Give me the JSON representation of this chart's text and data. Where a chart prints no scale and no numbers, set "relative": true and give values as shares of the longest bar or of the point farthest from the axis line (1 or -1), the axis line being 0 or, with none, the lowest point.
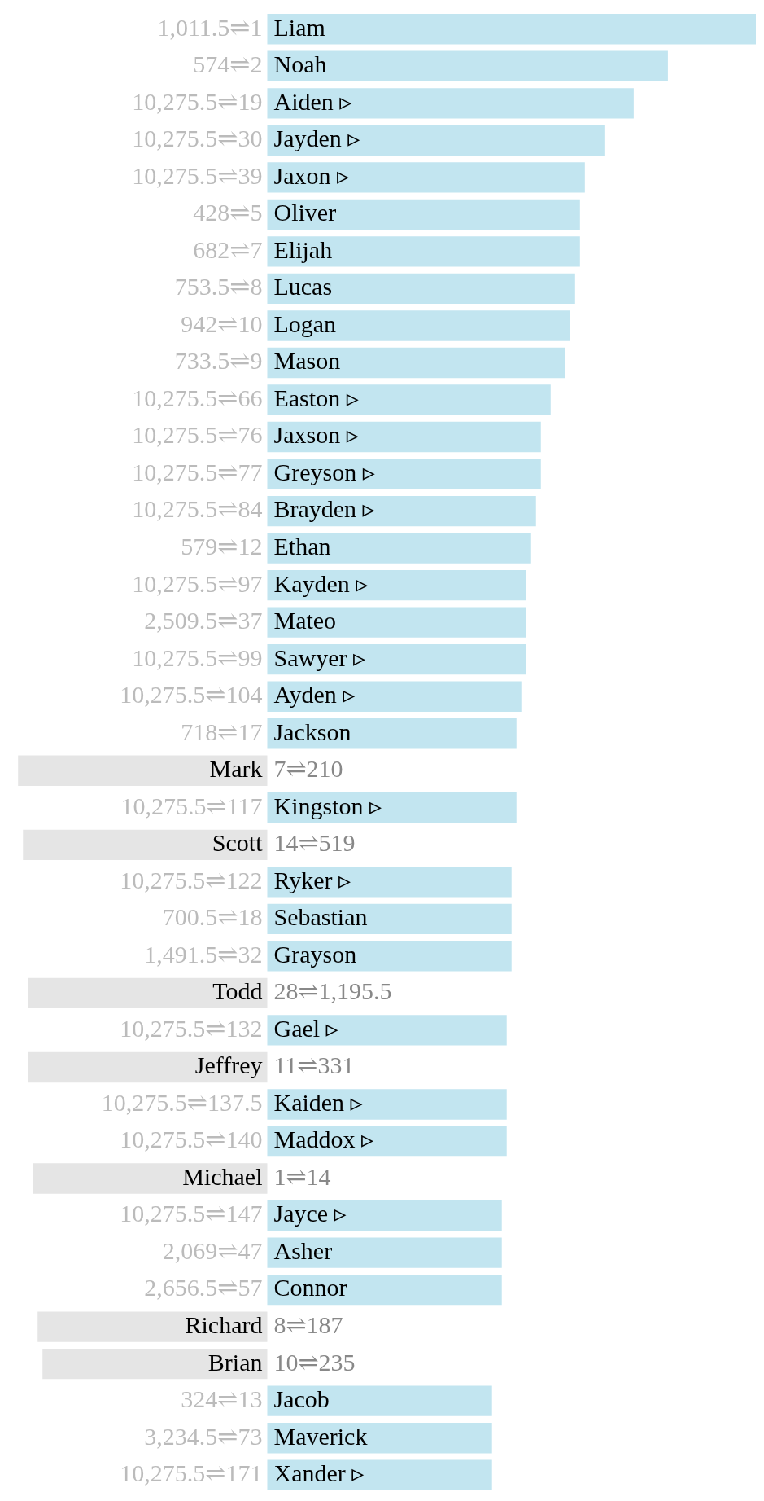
{
  "chart_data": {
    "type": "bar",
    "orientation": "horizontal",
    "relative": true,
    "categories": [
      "Liam",
      "Noah",
      "Aiden ▹",
      "Jayden ▹",
      "Jaxon ▹",
      "Oliver",
      "Elijah",
      "Lucas",
      "Logan",
      "Mason",
      "Easton ▹",
      "Jaxson ▹",
      "Greyson ▹",
      "Brayden ▹",
      "Ethan",
      "Kayden ▹",
      "Mateo",
      "Sawyer ▹",
      "Ayden ▹",
      "Jackson",
      "Mark",
      "Kingston ▹",
      "Scott",
      "Ryker ▹",
      "Sebastian",
      "Grayson",
      "Todd",
      "Gael ▹",
      "Jeffrey",
      "Kaiden ▹",
      "Maddox ▹",
      "Michael",
      "Jayce ▹",
      "Asher",
      "Connor",
      "Richard",
      "Brian",
      "Jacob",
      "Maverick",
      "Xander ▹"
    ],
    "values": [
      1,
      0.82,
      0.75,
      0.69,
      0.65,
      0.64,
      0.64,
      0.63,
      0.62,
      0.61,
      0.58,
      0.56,
      0.56,
      0.55,
      0.54,
      0.53,
      0.53,
      0.53,
      0.52,
      0.51,
      -0.51,
      0.51,
      -0.5,
      0.5,
      0.5,
      0.5,
      -0.49,
      0.49,
      -0.49,
      0.49,
      0.49,
      -0.48,
      0.48,
      0.48,
      0.48,
      -0.47,
      -0.46,
      0.46,
      0.46,
      0.46
    ],
    "colors": [
      "#c2e5f0",
      "#c2e5f0",
      "#c2e5f0",
      "#c2e5f0",
      "#c2e5f0",
      "#c2e5f0",
      "#c2e5f0",
      "#c2e5f0",
      "#c2e5f0",
      "#c2e5f0",
      "#c2e5f0",
      "#c2e5f0",
      "#c2e5f0",
      "#c2e5f0",
      "#c2e5f0",
      "#c2e5f0",
      "#c2e5f0",
      "#c2e5f0",
      "#c2e5f0",
      "#c2e5f0",
      "#e5e5e5",
      "#c2e5f0",
      "#e5e5e5",
      "#c2e5f0",
      "#c2e5f0",
      "#c2e5f0",
      "#e5e5e5",
      "#c2e5f0",
      "#e5e5e5",
      "#c2e5f0",
      "#c2e5f0",
      "#e5e5e5",
      "#c2e5f0",
      "#c2e5f0",
      "#c2e5f0",
      "#e5e5e5",
      "#e5e5e5",
      "#c2e5f0",
      "#c2e5f0",
      "#c2e5f0"
    ],
    "annotations": [
      "1,011.5⇌1",
      "574⇌2",
      "10,275.5⇌19",
      "10,275.5⇌30",
      "10,275.5⇌39",
      "428⇌5",
      "682⇌7",
      "753.5⇌8",
      "942⇌10",
      "733.5⇌9",
      "10,275.5⇌66",
      "10,275.5⇌76",
      "10,275.5⇌77",
      "10,275.5⇌84",
      "579⇌12",
      "10,275.5⇌97",
      "2,509.5⇌37",
      "10,275.5⇌99",
      "10,275.5⇌104",
      "718⇌17",
      "7⇌210",
      "10,275.5⇌117",
      "14⇌519",
      "10,275.5⇌122",
      "700.5⇌18",
      "1,491.5⇌32",
      "28⇌1,195.5",
      "10,275.5⇌132",
      "11⇌331",
      "10,275.5⇌137.5",
      "10,275.5⇌140",
      "1⇌14",
      "10,275.5⇌147",
      "2,069⇌47",
      "2,656.5⇌57",
      "8⇌187",
      "10⇌235",
      "324⇌13",
      "3,234.5⇌73",
      "10,275.5⇌171"
    ]
  }
}
